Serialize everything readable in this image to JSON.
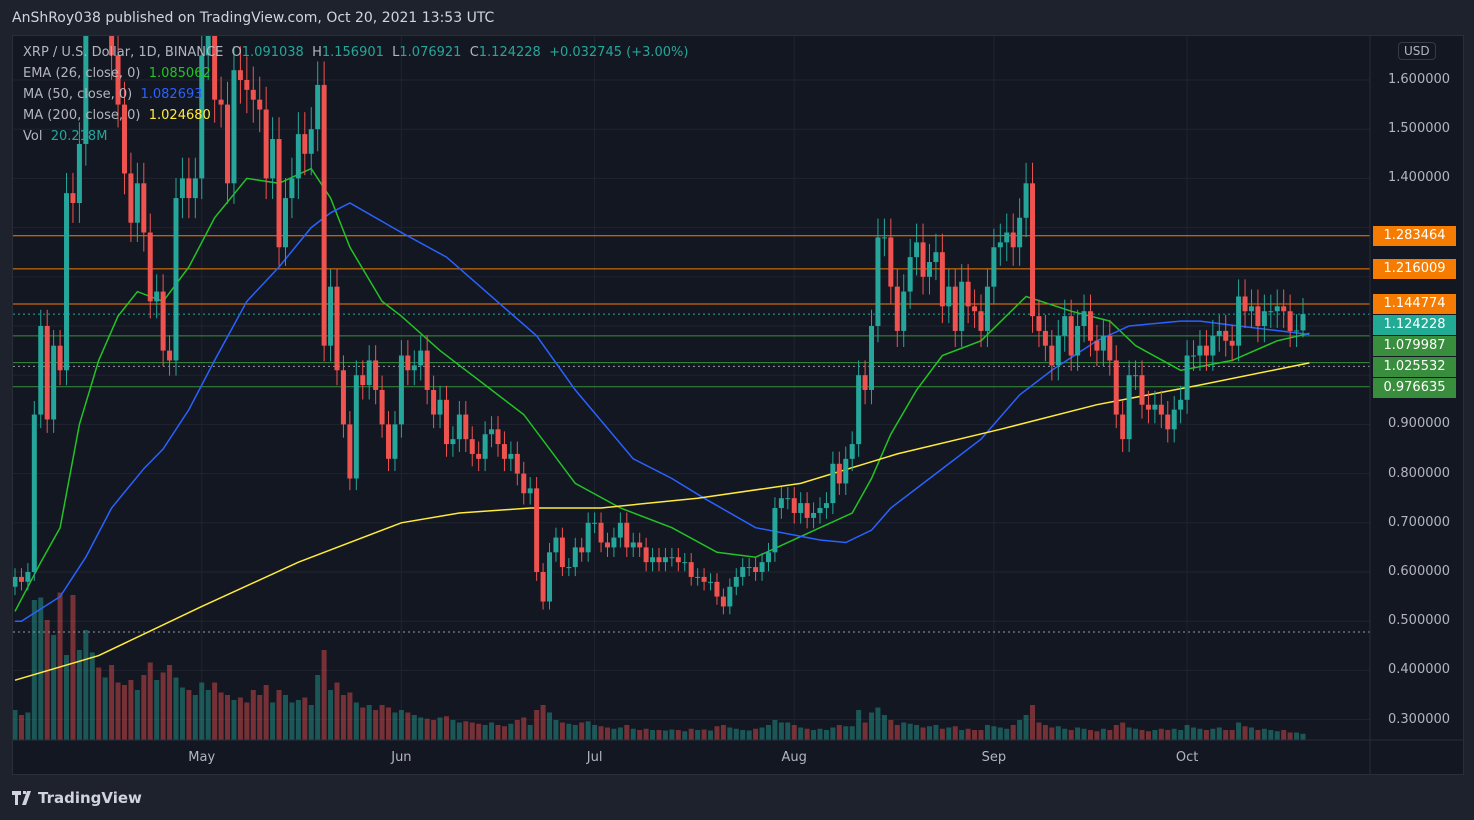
{
  "published": "AnShRoy038 published on TradingView.com, Oct 20, 2021 13:53 UTC",
  "legend": {
    "symbol": "XRP / U.S. Dollar, 1D, BINANCE",
    "o_label": "O",
    "o": "1.091038",
    "h_label": "H",
    "h": "1.156901",
    "l_label": "L",
    "l": "1.076921",
    "c_label": "C",
    "c": "1.124228",
    "change": "+0.032745 (+3.00%)",
    "ema_label": "EMA (26, close, 0)",
    "ema": "1.085062",
    "ma50_label": "MA (50, close, 0)",
    "ma50": "1.082693",
    "ma200_label": "MA (200, close, 0)",
    "ma200": "1.024680",
    "vol_label": "Vol",
    "vol": "20.218M"
  },
  "currency": "USD",
  "footer": {
    "logo_text": "TradingView"
  },
  "colors": {
    "up": "#26a69a",
    "down": "#ef5350",
    "ema": "#22c322",
    "ma50": "#2962ff",
    "ma200": "#ffeb3b",
    "orange": "#f57c00",
    "green": "#388e3c",
    "teal": "#22ab94"
  },
  "chart_data": {
    "type": "candlestick",
    "date_range": [
      "2021-04-02",
      "2021-10-20"
    ],
    "ylim": [
      0.26,
      1.69
    ],
    "y_ticks": [
      "1.600000",
      "1.500000",
      "1.400000",
      "0.900000",
      "0.800000",
      "0.700000",
      "0.600000",
      "0.500000",
      "0.400000",
      "0.300000"
    ],
    "x_ticks": [
      {
        "label": "May",
        "date": "2021-05-01"
      },
      {
        "label": "Jun",
        "date": "2021-06-01"
      },
      {
        "label": "Jul",
        "date": "2021-07-01"
      },
      {
        "label": "Aug",
        "date": "2021-08-01"
      },
      {
        "label": "Sep",
        "date": "2021-09-01"
      },
      {
        "label": "Oct",
        "date": "2021-10-01"
      }
    ],
    "first_open": 0.57,
    "closes": [
      0.59,
      0.58,
      0.6,
      0.92,
      1.1,
      0.91,
      1.06,
      1.01,
      1.37,
      1.35,
      1.47,
      1.75,
      1.85,
      1.8,
      1.9,
      1.65,
      1.55,
      1.41,
      1.31,
      1.39,
      1.29,
      1.15,
      1.17,
      1.05,
      1.03,
      1.36,
      1.4,
      1.36,
      1.4,
      1.65,
      1.7,
      1.56,
      1.55,
      1.39,
      1.62,
      1.6,
      1.58,
      1.56,
      1.54,
      1.4,
      1.48,
      1.26,
      1.36,
      1.4,
      1.49,
      1.45,
      1.5,
      1.59,
      1.06,
      1.18,
      1.01,
      0.9,
      0.79,
      1.0,
      0.98,
      1.03,
      0.97,
      0.9,
      0.83,
      0.9,
      1.04,
      1.01,
      1.02,
      1.05,
      0.97,
      0.92,
      0.95,
      0.86,
      0.87,
      0.92,
      0.87,
      0.84,
      0.83,
      0.88,
      0.89,
      0.86,
      0.83,
      0.84,
      0.8,
      0.76,
      0.77,
      0.6,
      0.54,
      0.64,
      0.67,
      0.61,
      0.61,
      0.65,
      0.64,
      0.7,
      0.7,
      0.66,
      0.65,
      0.67,
      0.7,
      0.65,
      0.66,
      0.65,
      0.62,
      0.63,
      0.62,
      0.63,
      0.63,
      0.62,
      0.62,
      0.59,
      0.59,
      0.58,
      0.58,
      0.55,
      0.53,
      0.57,
      0.59,
      0.61,
      0.61,
      0.6,
      0.62,
      0.64,
      0.73,
      0.75,
      0.75,
      0.72,
      0.74,
      0.71,
      0.72,
      0.73,
      0.74,
      0.82,
      0.78,
      0.83,
      0.86,
      1.0,
      0.97,
      1.1,
      1.28,
      1.28,
      1.18,
      1.09,
      1.17,
      1.24,
      1.27,
      1.2,
      1.23,
      1.25,
      1.14,
      1.18,
      1.09,
      1.19,
      1.14,
      1.13,
      1.09,
      1.18,
      1.26,
      1.27,
      1.29,
      1.26,
      1.32,
      1.39,
      1.12,
      1.09,
      1.06,
      1.02,
      1.08,
      1.12,
      1.04,
      1.1,
      1.13,
      1.07,
      1.05,
      1.08,
      1.03,
      0.92,
      0.87,
      1.0,
      1.0,
      0.94,
      0.93,
      0.94,
      0.92,
      0.89,
      0.93,
      0.95,
      1.04,
      1.04,
      1.06,
      1.04,
      1.08,
      1.09,
      1.07,
      1.06,
      1.16,
      1.13,
      1.14,
      1.1,
      1.13,
      1.13,
      1.14,
      1.13,
      1.09,
      1.091,
      1.124228
    ],
    "last_high": 1.156901,
    "last_low": 1.076921,
    "volumes_m": [
      120,
      100,
      110,
      560,
      570,
      480,
      420,
      590,
      340,
      580,
      360,
      440,
      350,
      290,
      250,
      300,
      230,
      220,
      240,
      200,
      260,
      310,
      240,
      270,
      300,
      250,
      210,
      200,
      180,
      230,
      200,
      230,
      190,
      180,
      160,
      170,
      150,
      200,
      180,
      220,
      150,
      200,
      180,
      150,
      160,
      170,
      140,
      260,
      360,
      200,
      230,
      180,
      190,
      150,
      130,
      140,
      120,
      140,
      130,
      110,
      120,
      110,
      100,
      90,
      85,
      80,
      90,
      95,
      80,
      70,
      75,
      70,
      65,
      60,
      70,
      60,
      55,
      65,
      80,
      90,
      60,
      120,
      140,
      110,
      80,
      70,
      65,
      60,
      70,
      75,
      60,
      55,
      50,
      45,
      50,
      60,
      45,
      40,
      45,
      40,
      40,
      38,
      42,
      40,
      35,
      45,
      40,
      42,
      38,
      55,
      60,
      50,
      45,
      40,
      38,
      45,
      50,
      60,
      80,
      70,
      70,
      60,
      50,
      45,
      40,
      45,
      40,
      50,
      60,
      55,
      55,
      120,
      70,
      110,
      130,
      100,
      80,
      60,
      70,
      65,
      60,
      50,
      55,
      60,
      45,
      50,
      55,
      40,
      45,
      40,
      40,
      60,
      55,
      50,
      45,
      60,
      80,
      100,
      140,
      70,
      60,
      50,
      55,
      45,
      40,
      50,
      45,
      40,
      35,
      45,
      40,
      60,
      70,
      50,
      45,
      40,
      35,
      40,
      45,
      40,
      45,
      40,
      60,
      50,
      45,
      40,
      45,
      50,
      40,
      40,
      70,
      55,
      50,
      40,
      45,
      40,
      35,
      40,
      30,
      30,
      25,
      20.218
    ],
    "indicators": [
      {
        "name": "EMA (26, close, 0)",
        "color": "#22c322",
        "points": [
          [
            "2021-04-02",
            0.52
          ],
          [
            "2021-04-06",
            0.62
          ],
          [
            "2021-04-09",
            0.69
          ],
          [
            "2021-04-12",
            0.9
          ],
          [
            "2021-04-15",
            1.03
          ],
          [
            "2021-04-18",
            1.12
          ],
          [
            "2021-04-21",
            1.17
          ],
          [
            "2021-04-25",
            1.15
          ],
          [
            "2021-04-29",
            1.22
          ],
          [
            "2021-05-03",
            1.32
          ],
          [
            "2021-05-08",
            1.4
          ],
          [
            "2021-05-13",
            1.39
          ],
          [
            "2021-05-18",
            1.42
          ],
          [
            "2021-05-21",
            1.36
          ],
          [
            "2021-05-24",
            1.26
          ],
          [
            "2021-05-29",
            1.15
          ],
          [
            "2021-06-01",
            1.12
          ],
          [
            "2021-06-07",
            1.05
          ],
          [
            "2021-06-14",
            0.98
          ],
          [
            "2021-06-20",
            0.92
          ],
          [
            "2021-06-28",
            0.78
          ],
          [
            "2021-07-05",
            0.73
          ],
          [
            "2021-07-13",
            0.69
          ],
          [
            "2021-07-20",
            0.64
          ],
          [
            "2021-07-26",
            0.63
          ],
          [
            "2021-08-05",
            0.69
          ],
          [
            "2021-08-10",
            0.72
          ],
          [
            "2021-08-13",
            0.79
          ],
          [
            "2021-08-16",
            0.88
          ],
          [
            "2021-08-20",
            0.97
          ],
          [
            "2021-08-24",
            1.04
          ],
          [
            "2021-08-30",
            1.07
          ],
          [
            "2021-09-06",
            1.16
          ],
          [
            "2021-09-13",
            1.13
          ],
          [
            "2021-09-19",
            1.11
          ],
          [
            "2021-09-23",
            1.06
          ],
          [
            "2021-09-30",
            1.01
          ],
          [
            "2021-10-08",
            1.03
          ],
          [
            "2021-10-15",
            1.07
          ],
          [
            "2021-10-20",
            1.085
          ]
        ]
      },
      {
        "name": "MA (50, close, 0)",
        "color": "#2962ff",
        "points": [
          [
            "2021-04-02",
            0.5
          ],
          [
            "2021-04-03",
            0.5
          ],
          [
            "2021-04-09",
            0.55
          ],
          [
            "2021-04-13",
            0.63
          ],
          [
            "2021-04-17",
            0.73
          ],
          [
            "2021-04-22",
            0.81
          ],
          [
            "2021-04-25",
            0.85
          ],
          [
            "2021-04-29",
            0.93
          ],
          [
            "2021-05-03",
            1.03
          ],
          [
            "2021-05-08",
            1.15
          ],
          [
            "2021-05-13",
            1.22
          ],
          [
            "2021-05-18",
            1.3
          ],
          [
            "2021-05-21",
            1.33
          ],
          [
            "2021-05-24",
            1.35
          ],
          [
            "2021-06-01",
            1.29
          ],
          [
            "2021-06-08",
            1.24
          ],
          [
            "2021-06-22",
            1.08
          ],
          [
            "2021-06-28",
            0.97
          ],
          [
            "2021-07-07",
            0.83
          ],
          [
            "2021-07-13",
            0.79
          ],
          [
            "2021-07-18",
            0.75
          ],
          [
            "2021-07-26",
            0.69
          ],
          [
            "2021-08-05",
            0.665
          ],
          [
            "2021-08-09",
            0.66
          ],
          [
            "2021-08-13",
            0.685
          ],
          [
            "2021-08-16",
            0.73
          ],
          [
            "2021-08-22",
            0.79
          ],
          [
            "2021-08-30",
            0.87
          ],
          [
            "2021-09-05",
            0.96
          ],
          [
            "2021-09-10",
            1.01
          ],
          [
            "2021-09-17",
            1.07
          ],
          [
            "2021-09-22",
            1.1
          ],
          [
            "2021-09-30",
            1.11
          ],
          [
            "2021-10-03",
            1.11
          ],
          [
            "2021-10-09",
            1.1
          ],
          [
            "2021-10-20",
            1.083
          ]
        ]
      },
      {
        "name": "MA (200, close, 0)",
        "color": "#ffeb3b",
        "points": [
          [
            "2021-04-02",
            0.38
          ],
          [
            "2021-04-15",
            0.43
          ],
          [
            "2021-05-01",
            0.53
          ],
          [
            "2021-05-16",
            0.62
          ],
          [
            "2021-06-01",
            0.7
          ],
          [
            "2021-06-10",
            0.72
          ],
          [
            "2021-06-21",
            0.73
          ],
          [
            "2021-07-02",
            0.73
          ],
          [
            "2021-07-17",
            0.75
          ],
          [
            "2021-08-02",
            0.78
          ],
          [
            "2021-08-17",
            0.84
          ],
          [
            "2021-09-02",
            0.89
          ],
          [
            "2021-09-17",
            0.94
          ],
          [
            "2021-10-03",
            0.98
          ],
          [
            "2021-10-20",
            1.025
          ]
        ]
      }
    ],
    "levels": [
      {
        "value": 1.283464,
        "label": "1.283464",
        "color": "#f57c00"
      },
      {
        "value": 1.216009,
        "label": "1.216009",
        "color": "#f57c00"
      },
      {
        "value": 1.144774,
        "label": "1.144774",
        "color": "#f57c00"
      },
      {
        "value": 1.124228,
        "label": "1.124228",
        "color": "#22ab94",
        "dotted": true
      },
      {
        "value": 1.079987,
        "label": "1.079987",
        "color": "#388e3c"
      },
      {
        "value": 1.025532,
        "label": "1.025532",
        "color": "#388e3c"
      },
      {
        "value": 0.976635,
        "label": "0.976635",
        "color": "#388e3c"
      }
    ],
    "dotted_levels": [
      1.018,
      0.478
    ]
  }
}
